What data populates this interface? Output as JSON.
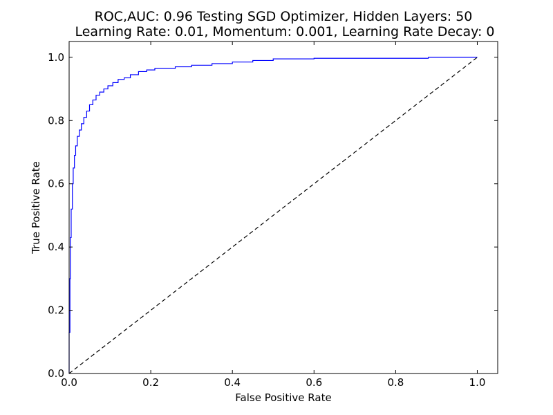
{
  "chart_data": {
    "type": "line",
    "title_lines": [
      "ROC,AUC: 0.96 Testing SGD Optimizer, Hidden Layers: 50",
      "Learning Rate: 0.01, Momentum: 0.001, Learning Rate Decay: 0"
    ],
    "xlabel": "False Positive Rate",
    "ylabel": "True Positive Rate",
    "xlim": [
      0.0,
      1.05
    ],
    "ylim": [
      0.0,
      1.05
    ],
    "x_ticks": [
      "0.0",
      "0.2",
      "0.4",
      "0.6",
      "0.8",
      "1.0"
    ],
    "y_ticks": [
      "0.0",
      "0.2",
      "0.4",
      "0.6",
      "0.8",
      "1.0"
    ],
    "grid": false,
    "legend": "none",
    "series": [
      {
        "style": "solid",
        "color": "#0000ff",
        "x": [
          0.0,
          0.0,
          0.002,
          0.002,
          0.003,
          0.003,
          0.005,
          0.005,
          0.008,
          0.008,
          0.01,
          0.01,
          0.013,
          0.013,
          0.016,
          0.016,
          0.02,
          0.02,
          0.025,
          0.025,
          0.03,
          0.03,
          0.036,
          0.036,
          0.043,
          0.043,
          0.05,
          0.05,
          0.058,
          0.058,
          0.066,
          0.066,
          0.075,
          0.075,
          0.085,
          0.085,
          0.095,
          0.095,
          0.107,
          0.107,
          0.12,
          0.12,
          0.135,
          0.135,
          0.15,
          0.15,
          0.17,
          0.17,
          0.19,
          0.19,
          0.21,
          0.21,
          0.26,
          0.26,
          0.3,
          0.3,
          0.35,
          0.35,
          0.4,
          0.4,
          0.45,
          0.45,
          0.5,
          0.5,
          0.6,
          0.6,
          0.88,
          0.88,
          1.0
        ],
        "y": [
          0.0,
          0.13,
          0.13,
          0.3,
          0.3,
          0.43,
          0.43,
          0.52,
          0.52,
          0.6,
          0.6,
          0.65,
          0.65,
          0.69,
          0.69,
          0.72,
          0.72,
          0.75,
          0.75,
          0.77,
          0.77,
          0.79,
          0.79,
          0.81,
          0.81,
          0.83,
          0.83,
          0.85,
          0.85,
          0.865,
          0.865,
          0.88,
          0.88,
          0.89,
          0.89,
          0.9,
          0.9,
          0.91,
          0.91,
          0.92,
          0.92,
          0.93,
          0.93,
          0.935,
          0.935,
          0.945,
          0.945,
          0.955,
          0.955,
          0.96,
          0.96,
          0.965,
          0.965,
          0.97,
          0.97,
          0.975,
          0.975,
          0.98,
          0.98,
          0.985,
          0.985,
          0.99,
          0.99,
          0.995,
          0.995,
          0.997,
          0.997,
          1.0,
          1.0
        ]
      },
      {
        "style": "dashed",
        "color": "#000000",
        "x": [
          0.0,
          1.0
        ],
        "y": [
          0.0,
          1.0
        ]
      }
    ]
  }
}
